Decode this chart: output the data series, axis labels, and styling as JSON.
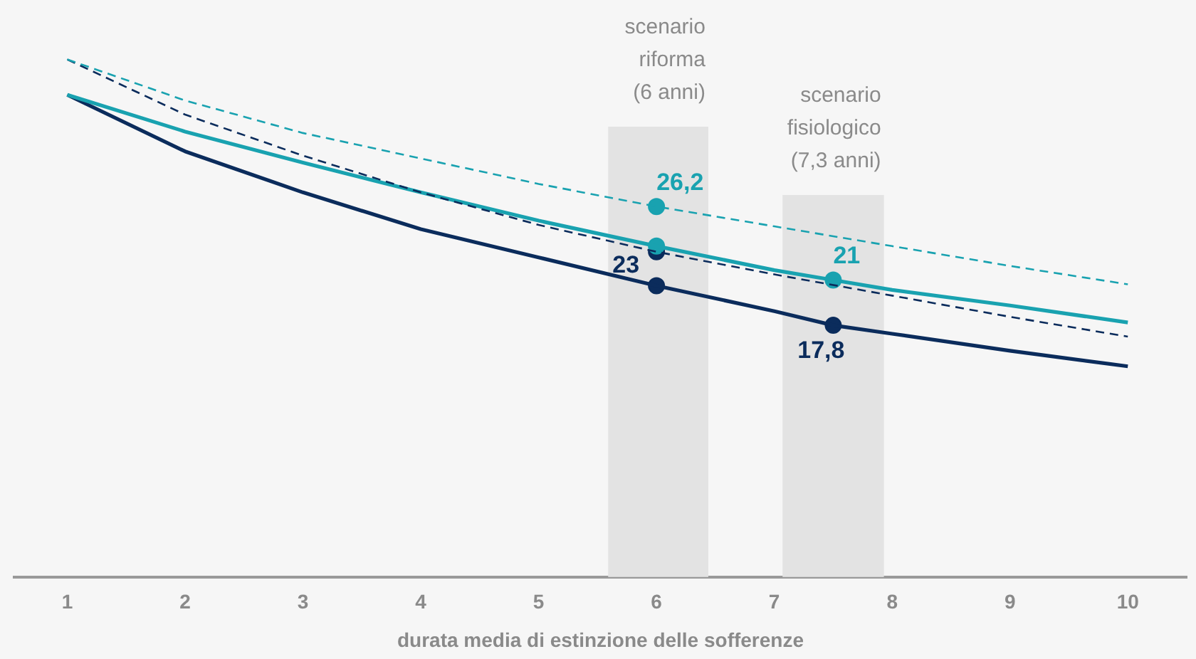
{
  "chart_data": {
    "type": "line",
    "xlabel": "durata media di estinzione delle sofferenze",
    "xlim": [
      0.55,
      10.5
    ],
    "xticks": [
      1,
      2,
      3,
      4,
      5,
      6,
      7,
      8,
      9,
      10
    ],
    "tick_labels": "x",
    "grid": false,
    "legend": false,
    "series": [
      {
        "line_style": "dashed",
        "color": "#19a2b0",
        "x": [
          1,
          2,
          3,
          4,
          5,
          6,
          7,
          8,
          9,
          10
        ],
        "values": [
          36.6,
          33.7,
          31.4,
          29.6,
          27.8,
          26.2,
          24.8,
          23.4,
          22.0,
          20.7
        ]
      },
      {
        "line_style": "dashed",
        "color": "#0b2c5c",
        "x": [
          1,
          2,
          3,
          4,
          5,
          6,
          7,
          8,
          9,
          10
        ],
        "values": [
          36.6,
          32.7,
          29.8,
          27.2,
          24.9,
          23.0,
          21.4,
          19.9,
          18.4,
          17.0
        ]
      },
      {
        "line_style": "solid",
        "color": "#19a2b0",
        "x": [
          1,
          2,
          3,
          4,
          5,
          6,
          7,
          7.5,
          8,
          9,
          10
        ],
        "values": [
          34.1,
          31.5,
          29.3,
          27.2,
          25.2,
          23.4,
          21.7,
          21.0,
          20.3,
          19.2,
          18.0
        ]
      },
      {
        "line_style": "solid",
        "color": "#0b2c5c",
        "x": [
          1,
          2,
          3,
          4,
          5,
          6,
          7,
          7.5,
          8,
          9,
          10
        ],
        "values": [
          34.1,
          30.1,
          27.2,
          24.6,
          22.6,
          20.6,
          18.8,
          17.8,
          17.2,
          16.0,
          14.9
        ]
      },
      {
        "type": "scatter",
        "marker": "circle",
        "color": "#19a2b0",
        "x": [
          6,
          6,
          7.5
        ],
        "values": [
          26.2,
          23.4,
          21.0
        ],
        "value_labels": [
          "26,2",
          null,
          "21"
        ]
      },
      {
        "type": "scatter",
        "marker": "circle",
        "color": "#0b2c5c",
        "x": [
          6,
          6,
          7.5
        ],
        "values": [
          23.0,
          20.6,
          17.8
        ],
        "value_labels": [
          "23",
          null,
          "17,8"
        ]
      }
    ],
    "bands": [
      {
        "axis": "x",
        "from": 5.59,
        "to": 6.44,
        "label": "scenario\nriforma\n(6 anni)",
        "color": "#e3e3e3"
      },
      {
        "axis": "x",
        "from": 7.07,
        "to": 7.93,
        "label": "scenario\nfisiologico\n(7,3 anni)",
        "color": "#e3e3e3"
      }
    ]
  }
}
